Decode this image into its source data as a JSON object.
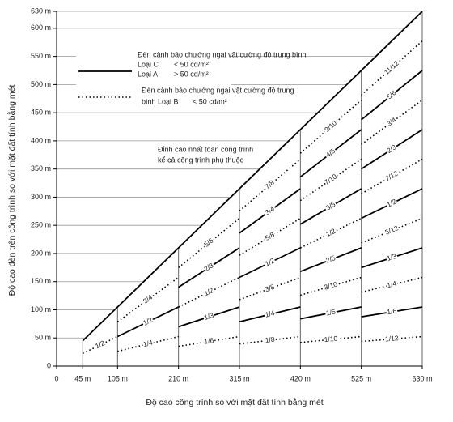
{
  "chart_data": {
    "type": "line",
    "x_label": "Độ cao công trình so với mặt đất tính bằng mét",
    "y_label": "Độ cao đèn trên công trình so với mặt đất tính bằng mét",
    "xlim": [
      0,
      630
    ],
    "ylim": [
      0,
      630
    ],
    "xticks": [
      0,
      {
        "value": 45,
        "label": "45 m"
      },
      {
        "value": 105,
        "label": "105 m"
      },
      {
        "value": 210,
        "label": "210 m"
      },
      {
        "value": 315,
        "label": "315 m"
      },
      {
        "value": 420,
        "label": "420 m"
      },
      {
        "value": 525,
        "label": "525 m"
      },
      {
        "value": 630,
        "label": "630 m"
      }
    ],
    "yticks": [
      0,
      {
        "value": 50,
        "label": "50 m"
      },
      {
        "value": 100,
        "label": "100 m"
      },
      {
        "value": 150,
        "label": "150 m"
      },
      {
        "value": 200,
        "label": "200 m"
      },
      {
        "value": 250,
        "label": "250 m"
      },
      {
        "value": 300,
        "label": "300 m"
      },
      {
        "value": 350,
        "label": "350 m"
      },
      {
        "value": 400,
        "label": "400 m"
      },
      {
        "value": 450,
        "label": "450 m"
      },
      {
        "value": 500,
        "label": "500 m"
      },
      {
        "value": 550,
        "label": "550 m"
      },
      {
        "value": 600,
        "label": "600 m"
      },
      {
        "value": 630,
        "label": "630 m"
      }
    ],
    "grid": true,
    "envelope": {
      "x": [
        45,
        630
      ],
      "values": [
        45,
        630
      ],
      "color": "#000000"
    },
    "series": [
      {
        "name": "1/2",
        "style": "dotted",
        "color": "#000000",
        "x": [
          45,
          105
        ],
        "values": [
          22.5,
          52.5
        ]
      },
      {
        "name": "3/4",
        "style": "dotted",
        "color": "#000000",
        "x": [
          105,
          210
        ],
        "values": [
          78.75,
          157.5
        ]
      },
      {
        "name": "1/2",
        "style": "solid",
        "color": "#000000",
        "x": [
          105,
          210
        ],
        "values": [
          52.5,
          105
        ]
      },
      {
        "name": "1/4",
        "style": "dotted",
        "color": "#000000",
        "x": [
          105,
          210
        ],
        "values": [
          26.25,
          52.5
        ]
      },
      {
        "name": "5/6",
        "style": "dotted",
        "color": "#000000",
        "x": [
          210,
          315
        ],
        "values": [
          175,
          262.5
        ]
      },
      {
        "name": "2/3",
        "style": "solid",
        "color": "#000000",
        "x": [
          210,
          315
        ],
        "values": [
          140,
          210
        ]
      },
      {
        "name": "1/2",
        "style": "dotted",
        "color": "#000000",
        "x": [
          210,
          315
        ],
        "values": [
          105,
          157.5
        ]
      },
      {
        "name": "1/3",
        "style": "solid",
        "color": "#000000",
        "x": [
          210,
          315
        ],
        "values": [
          70,
          105
        ]
      },
      {
        "name": "1/6",
        "style": "dotted",
        "color": "#000000",
        "x": [
          210,
          315
        ],
        "values": [
          35,
          52.5
        ]
      },
      {
        "name": "7/8",
        "style": "dotted",
        "color": "#000000",
        "x": [
          315,
          420
        ],
        "values": [
          275.625,
          367.5
        ]
      },
      {
        "name": "3/4",
        "style": "solid",
        "color": "#000000",
        "x": [
          315,
          420
        ],
        "values": [
          236.25,
          315
        ]
      },
      {
        "name": "5/8",
        "style": "dotted",
        "color": "#000000",
        "x": [
          315,
          420
        ],
        "values": [
          196.875,
          262.5
        ]
      },
      {
        "name": "1/2",
        "style": "solid",
        "color": "#000000",
        "x": [
          315,
          420
        ],
        "values": [
          157.5,
          210
        ]
      },
      {
        "name": "3/8",
        "style": "dotted",
        "color": "#000000",
        "x": [
          315,
          420
        ],
        "values": [
          118.125,
          157.5
        ]
      },
      {
        "name": "1/4",
        "style": "solid",
        "color": "#000000",
        "x": [
          315,
          420
        ],
        "values": [
          78.75,
          105
        ]
      },
      {
        "name": "1/8",
        "style": "dotted",
        "color": "#000000",
        "x": [
          315,
          420
        ],
        "values": [
          39.375,
          52.5
        ]
      },
      {
        "name": "9/10",
        "style": "dotted",
        "color": "#000000",
        "x": [
          420,
          525
        ],
        "values": [
          378,
          472.5
        ]
      },
      {
        "name": "4/5",
        "style": "solid",
        "color": "#000000",
        "x": [
          420,
          525
        ],
        "values": [
          336,
          420
        ]
      },
      {
        "name": "7/10",
        "style": "dotted",
        "color": "#000000",
        "x": [
          420,
          525
        ],
        "values": [
          294,
          367.5
        ]
      },
      {
        "name": "3/5",
        "style": "solid",
        "color": "#000000",
        "x": [
          420,
          525
        ],
        "values": [
          252,
          315
        ]
      },
      {
        "name": "1/2",
        "style": "dotted",
        "color": "#000000",
        "x": [
          420,
          525
        ],
        "values": [
          210,
          262.5
        ]
      },
      {
        "name": "2/5",
        "style": "solid",
        "color": "#000000",
        "x": [
          420,
          525
        ],
        "values": [
          168,
          210
        ]
      },
      {
        "name": "3/10",
        "style": "dotted",
        "color": "#000000",
        "x": [
          420,
          525
        ],
        "values": [
          126,
          157.5
        ]
      },
      {
        "name": "1/5",
        "style": "solid",
        "color": "#000000",
        "x": [
          420,
          525
        ],
        "values": [
          84,
          105
        ]
      },
      {
        "name": "1/10",
        "style": "dotted",
        "color": "#000000",
        "x": [
          420,
          525
        ],
        "values": [
          42,
          52.5
        ]
      },
      {
        "name": "11/12",
        "style": "dotted",
        "color": "#000000",
        "x": [
          525,
          630
        ],
        "values": [
          481.25,
          577.5
        ]
      },
      {
        "name": "5/6",
        "style": "solid",
        "color": "#000000",
        "x": [
          525,
          630
        ],
        "values": [
          437.5,
          525
        ]
      },
      {
        "name": "3/4",
        "style": "dotted",
        "color": "#000000",
        "x": [
          525,
          630
        ],
        "values": [
          393.75,
          472.5
        ]
      },
      {
        "name": "2/3",
        "style": "solid",
        "color": "#000000",
        "x": [
          525,
          630
        ],
        "values": [
          350,
          420
        ]
      },
      {
        "name": "7/12",
        "style": "dotted",
        "color": "#000000",
        "x": [
          525,
          630
        ],
        "values": [
          306.25,
          367.5
        ]
      },
      {
        "name": "1/2",
        "style": "solid",
        "color": "#000000",
        "x": [
          525,
          630
        ],
        "values": [
          262.5,
          315
        ]
      },
      {
        "name": "5/12",
        "style": "dotted",
        "color": "#000000",
        "x": [
          525,
          630
        ],
        "values": [
          218.75,
          262.5
        ]
      },
      {
        "name": "1/3",
        "style": "solid",
        "color": "#000000",
        "x": [
          525,
          630
        ],
        "values": [
          175,
          210
        ]
      },
      {
        "name": "1/4",
        "style": "dotted",
        "color": "#000000",
        "x": [
          525,
          630
        ],
        "values": [
          131.25,
          157.5
        ]
      },
      {
        "name": "1/6",
        "style": "solid",
        "color": "#000000",
        "x": [
          525,
          630
        ],
        "values": [
          87.5,
          105
        ]
      },
      {
        "name": "1/12",
        "style": "dotted",
        "color": "#000000",
        "x": [
          525,
          630
        ],
        "values": [
          43.75,
          52.5
        ]
      }
    ],
    "legend": [
      {
        "style": "solid",
        "title": "Đèn cảnh báo chướng ngại vật cường độ trung bình",
        "rows": [
          [
            "Loại C",
            "< 50 cd/m²"
          ],
          [
            "Loại A",
            "> 50 cd/m²"
          ]
        ]
      },
      {
        "style": "dotted",
        "title": "Đèn cảnh báo chướng ngại vật cường độ trung",
        "rows": [
          [
            "bình Loại B",
            "< 50 cd/m²"
          ]
        ]
      }
    ],
    "annotation": [
      "Đỉnh cao nhất toàn công trình",
      "kể cả công trình phụ thuộc"
    ]
  }
}
